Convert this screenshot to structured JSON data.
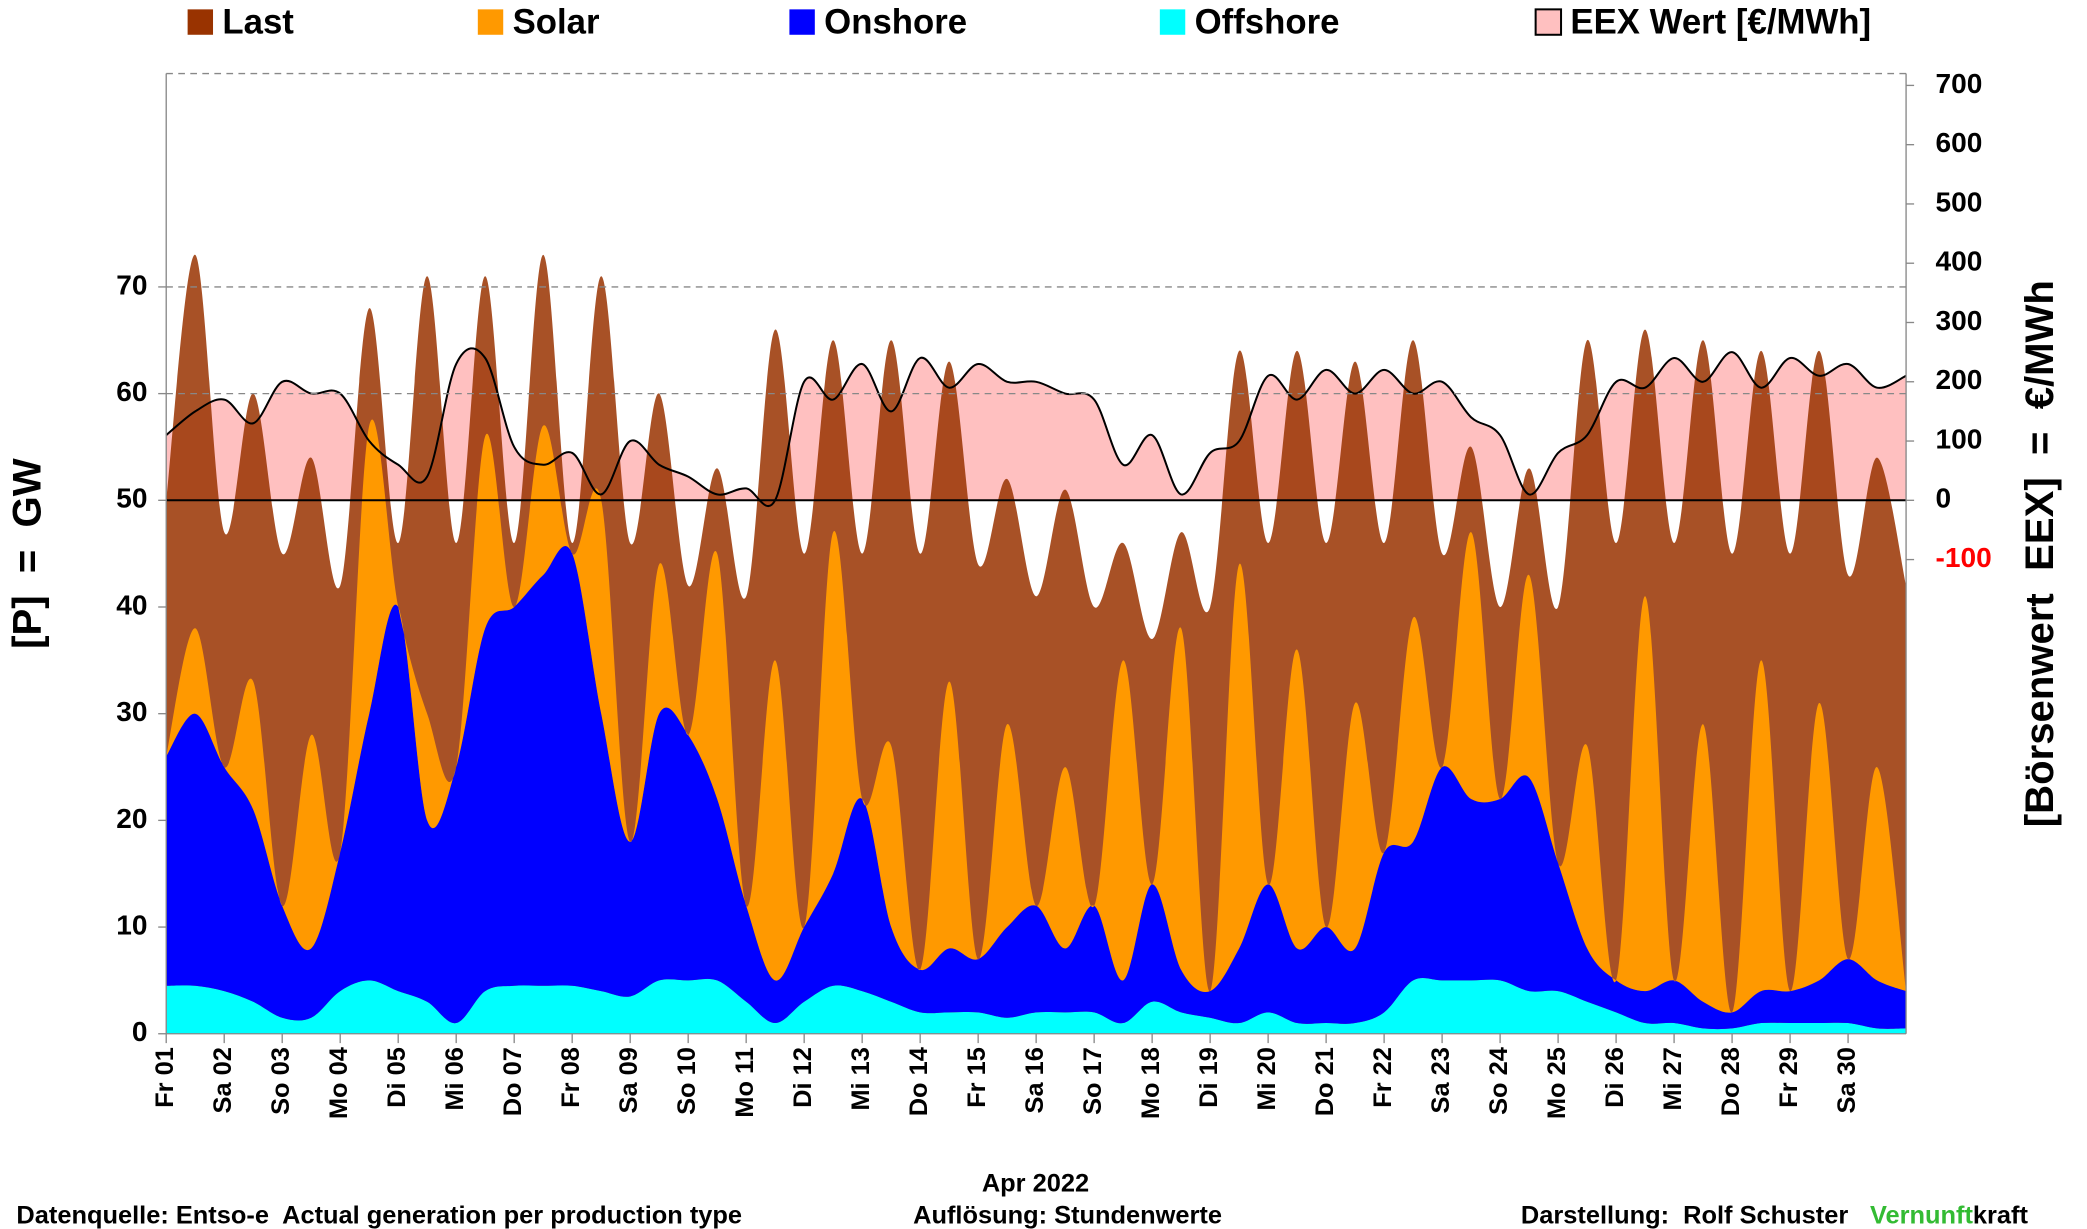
{
  "chart_data": {
    "type": "stacked_area",
    "x": [
      0,
      0.5,
      1,
      1.5,
      2,
      2.5,
      3,
      3.5,
      4,
      4.5,
      5,
      5.5,
      6,
      6.5,
      7,
      7.5,
      8,
      8.5,
      9,
      9.5,
      10,
      10.5,
      11,
      11.5,
      12,
      12.5,
      13,
      13.5,
      14,
      14.5,
      15,
      15.5,
      16,
      16.5,
      17,
      17.5,
      18,
      18.5,
      19,
      19.5,
      20,
      20.5,
      21,
      21.5,
      22,
      22.5,
      23,
      23.5,
      24,
      24.5,
      25,
      25.5,
      26,
      26.5,
      27,
      27.5,
      28,
      28.5,
      29,
      29.5,
      30
    ],
    "xlim": [
      0,
      30
    ],
    "xticks": [
      {
        "value": 0,
        "label": "Fr 01"
      },
      {
        "value": 1,
        "label": "Sa 02"
      },
      {
        "value": 2,
        "label": "So 03"
      },
      {
        "value": 3,
        "label": "Mo 04"
      },
      {
        "value": 4,
        "label": "Di 05"
      },
      {
        "value": 5,
        "label": "Mi 06"
      },
      {
        "value": 6,
        "label": "Do 07"
      },
      {
        "value": 7,
        "label": "Fr 08"
      },
      {
        "value": 8,
        "label": "Sa 09"
      },
      {
        "value": 9,
        "label": "So 10"
      },
      {
        "value": 10,
        "label": "Mo 11"
      },
      {
        "value": 11,
        "label": "Di 12"
      },
      {
        "value": 12,
        "label": "Mi 13"
      },
      {
        "value": 13,
        "label": "Do 14"
      },
      {
        "value": 14,
        "label": "Fr 15"
      },
      {
        "value": 15,
        "label": "Sa 16"
      },
      {
        "value": 16,
        "label": "So 17"
      },
      {
        "value": 17,
        "label": "Mo 18"
      },
      {
        "value": 18,
        "label": "Di 19"
      },
      {
        "value": 19,
        "label": "Mi 20"
      },
      {
        "value": 20,
        "label": "Do 21"
      },
      {
        "value": 21,
        "label": "Fr 22"
      },
      {
        "value": 22,
        "label": "Sa 23"
      },
      {
        "value": 23,
        "label": "So 24"
      },
      {
        "value": 24,
        "label": "Mo 25"
      },
      {
        "value": 25,
        "label": "Di 26"
      },
      {
        "value": 26,
        "label": "Mi 27"
      },
      {
        "value": 27,
        "label": "Do 28"
      },
      {
        "value": 28,
        "label": "Fr 29"
      },
      {
        "value": 29,
        "label": "Sa 30"
      }
    ],
    "xlabel": "Apr 2022",
    "ylabel": "[P]  =  GW",
    "y2label": "[Börsenwert  EEX]  =  €/MWh",
    "ylim": [
      0,
      90
    ],
    "yticks": [
      0,
      10,
      20,
      30,
      40,
      50,
      60,
      70
    ],
    "y2lim": [
      -900,
      720
    ],
    "y2ticks": [
      -100,
      0,
      100,
      200,
      300,
      400,
      500,
      600,
      700
    ],
    "negative_tick_color": "#ff0000",
    "grid": true,
    "series": [
      {
        "name": "Last",
        "color": "#993300",
        "stacked": false,
        "values": [
          50,
          73,
          47,
          60,
          45,
          54,
          42,
          68,
          46,
          71,
          46,
          71,
          46,
          73,
          46,
          71,
          46,
          60,
          42,
          53,
          41,
          66,
          45,
          65,
          45,
          65,
          45,
          63,
          44,
          52,
          41,
          51,
          40,
          46,
          37,
          47,
          40,
          64,
          46,
          64,
          46,
          63,
          46,
          65,
          45,
          55,
          40,
          53,
          40,
          65,
          46,
          66,
          46,
          65,
          45,
          64,
          45,
          64,
          43,
          54,
          42
        ]
      },
      {
        "name": "Solar",
        "color": "#ff9900",
        "stacked": true,
        "values": [
          0,
          8,
          0,
          12,
          0,
          20,
          0,
          27,
          0,
          10,
          0,
          18,
          0,
          14,
          0,
          20,
          0,
          14,
          0,
          23,
          0,
          30,
          0,
          32,
          0,
          17,
          0,
          25,
          0,
          19,
          0,
          17,
          0,
          30,
          0,
          32,
          0,
          36,
          0,
          28,
          0,
          23,
          0,
          21,
          0,
          25,
          0,
          19,
          0,
          19,
          0,
          37,
          0,
          26,
          0,
          31,
          0,
          26,
          0,
          20,
          0
        ]
      },
      {
        "name": "Onshore",
        "color": "#0000ff",
        "stacked": true,
        "values": [
          21.5,
          25.5,
          21,
          18,
          10.5,
          6.5,
          13,
          25,
          36,
          17,
          24,
          34,
          35.5,
          38.5,
          40.5,
          26,
          14.5,
          25,
          23,
          17,
          9,
          4,
          7,
          10.5,
          18,
          7,
          4,
          6,
          5,
          8.5,
          10,
          6,
          10,
          4,
          11,
          4,
          2.5,
          7,
          12,
          7,
          9,
          7,
          15,
          13,
          20,
          17,
          17,
          20,
          12,
          5,
          3,
          3,
          4,
          2.5,
          1.5,
          3,
          3,
          4,
          6,
          4.5,
          3.5
        ]
      },
      {
        "name": "Offshore",
        "color": "#00ffff",
        "stacked": true,
        "values": [
          4.5,
          4.5,
          4,
          3,
          1.5,
          1.5,
          4,
          5,
          4,
          3,
          1,
          4,
          4.5,
          4.5,
          4.5,
          4,
          3.5,
          5,
          5,
          5,
          3,
          1,
          3,
          4.5,
          4,
          3,
          2,
          2,
          2,
          1.5,
          2,
          2,
          2,
          1,
          3,
          2,
          1.5,
          1,
          2,
          1,
          1,
          1,
          2,
          5,
          5,
          5,
          5,
          4,
          4,
          3,
          2,
          1,
          1,
          0.5,
          0.5,
          1,
          1,
          1,
          1,
          0.5,
          0.5
        ]
      },
      {
        "name": "EEX Wert [€/MWh]",
        "color": "#ffc0c0",
        "line_color": "#000000",
        "axis": "y2",
        "values": [
          110,
          150,
          170,
          130,
          200,
          180,
          180,
          100,
          60,
          40,
          230,
          240,
          90,
          60,
          80,
          10,
          100,
          60,
          40,
          10,
          20,
          0,
          200,
          170,
          230,
          150,
          240,
          190,
          230,
          200,
          200,
          180,
          170,
          60,
          110,
          10,
          80,
          100,
          210,
          170,
          220,
          180,
          220,
          180,
          200,
          140,
          110,
          10,
          80,
          110,
          200,
          190,
          240,
          200,
          250,
          190,
          240,
          210,
          230,
          190,
          210
        ]
      }
    ]
  },
  "footer": {
    "source": "Datenquelle: Entso-e  Actual generation per production type",
    "resolution": "Auflösung: Stundenwerte",
    "author": "Darstellung:  Rolf Schuster",
    "brand_green": "Vernunft",
    "brand_rest": "kraft",
    "brand_color": "#33bb33"
  }
}
